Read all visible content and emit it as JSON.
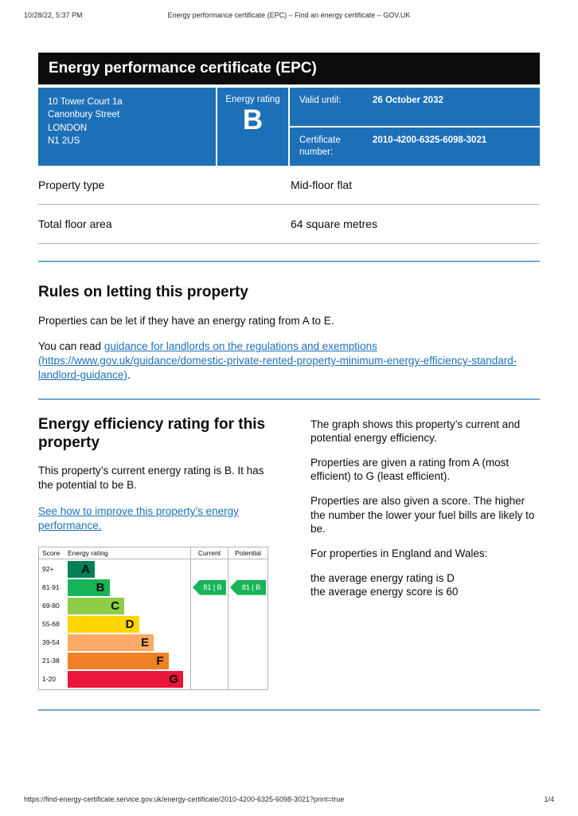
{
  "print_header": {
    "timestamp": "10/28/22, 5:37 PM",
    "title": "Energy performance certificate (EPC) – Find an energy certificate – GOV.UK"
  },
  "banner": {
    "title": "Energy performance certificate (EPC)"
  },
  "summary": {
    "address_lines": [
      "10 Tower Court 1a",
      "Canonbury Street",
      "LONDON",
      "N1 2US"
    ],
    "energy_rating_label": "Energy rating",
    "energy_rating": "B",
    "valid_until_label": "Valid until:",
    "valid_until_value": "26 October 2032",
    "certificate_number_label": "Certificate number:",
    "certificate_number_value": "2010-4200-6325-6098-3021"
  },
  "property_details": {
    "rows": [
      {
        "label": "Property type",
        "value": "Mid-floor flat"
      },
      {
        "label": "Total floor area",
        "value": "64 square metres"
      }
    ]
  },
  "rules": {
    "heading": "Rules on letting this property",
    "intro": "Properties can be let if they have an energy rating from A to E.",
    "read_prefix": "You can read ",
    "link_text": "guidance for landlords on the regulations and exemptions (https://www.gov.uk/guidance/domestic-private-rented-property-minimum-energy-efficiency-standard-landlord-guidance)",
    "read_suffix": "."
  },
  "efficiency": {
    "heading": "Energy efficiency rating for this property",
    "current_text": "This property’s current energy rating is B. It has the potential to be B.",
    "improve_link": "See how to improve this property’s energy performance."
  },
  "chart_data": {
    "type": "epc-band-chart",
    "headers": {
      "score": "Score",
      "rating": "Energy rating",
      "current": "Current",
      "potential": "Potential"
    },
    "bands": [
      {
        "score_range": "92+",
        "letter": "A",
        "color": "#008054"
      },
      {
        "score_range": "81-91",
        "letter": "B",
        "color": "#19b459"
      },
      {
        "score_range": "69-80",
        "letter": "C",
        "color": "#8dce46"
      },
      {
        "score_range": "55-68",
        "letter": "D",
        "color": "#ffd500"
      },
      {
        "score_range": "39-54",
        "letter": "E",
        "color": "#fcaa65"
      },
      {
        "score_range": "21-38",
        "letter": "F",
        "color": "#ef8023"
      },
      {
        "score_range": "1-20",
        "letter": "G",
        "color": "#e9153b"
      }
    ],
    "current": {
      "score": 81,
      "letter": "B",
      "label": "81 | B",
      "band_index": 1,
      "color": "#19b459"
    },
    "potential": {
      "score": 81,
      "letter": "B",
      "label": "81 | B",
      "band_index": 1,
      "color": "#19b459"
    }
  },
  "explanation": {
    "paragraphs": [
      "The graph shows this property’s current and potential energy efficiency.",
      "Properties are given a rating from A (most efficient) to G (least efficient).",
      "Properties are also given a score. The higher the number the lower your fuel bills are likely to be.",
      "For properties in England and Wales:"
    ],
    "average_lines": [
      "the average energy rating is D",
      "the average energy score is 60"
    ]
  },
  "print_footer": {
    "url": "https://find-energy-certificate.service.gov.uk/energy-certificate/2010-4200-6325-6098-3021?print=true",
    "page_indicator": "1/4"
  },
  "colors": {
    "govuk_blue": "#1d70b8",
    "banner_black": "#0b0c0c",
    "rule_blue": "#76a6ce",
    "border_grey": "#b1b4b6",
    "link_blue": "#1d70b8"
  }
}
